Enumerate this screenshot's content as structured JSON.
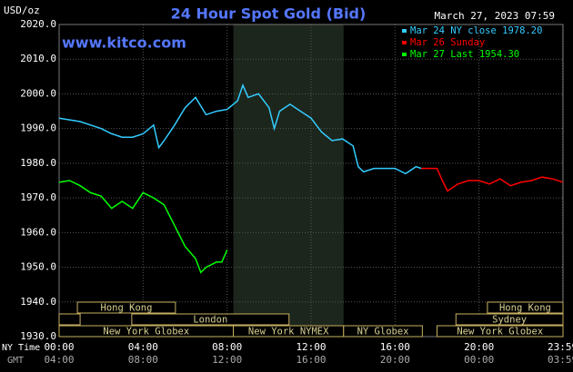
{
  "chart_data": {
    "type": "line",
    "title": "24 Hour Spot Gold (Bid)",
    "unit_label": "USD/oz",
    "date_label": "March 27, 2023 07:59",
    "watermark": "www.kitco.com",
    "x_row_label": "NY Time",
    "x_row2_label": "GMT",
    "xlim": [
      0,
      24
    ],
    "ylim": [
      1930,
      2020
    ],
    "yticks": [
      {
        "value": 1930,
        "label": "1930.0"
      },
      {
        "value": 1940,
        "label": "1940.0"
      },
      {
        "value": 1950,
        "label": "1950.0"
      },
      {
        "value": 1960,
        "label": "1960.0"
      },
      {
        "value": 1970,
        "label": "1970.0"
      },
      {
        "value": 1980,
        "label": "1980.0"
      },
      {
        "value": 1990,
        "label": "1990.0"
      },
      {
        "value": 2000,
        "label": "2000.0"
      },
      {
        "value": 2010,
        "label": "2010.0"
      },
      {
        "value": 2020,
        "label": "2020.0"
      }
    ],
    "xticks": [
      {
        "value": 0,
        "label": "00:00"
      },
      {
        "value": 4,
        "label": "04:00"
      },
      {
        "value": 8,
        "label": "08:00"
      },
      {
        "value": 12,
        "label": "12:00"
      },
      {
        "value": 16,
        "label": "16:00"
      },
      {
        "value": 20,
        "label": "20:00"
      },
      {
        "value": 23.98,
        "label": "23:59"
      }
    ],
    "xticks_gmt": [
      "04:00",
      "08:00",
      "12:00",
      "16:00",
      "20:00",
      "00:00",
      "03:59"
    ],
    "grid": true,
    "highlight": [
      8.3,
      13.55
    ],
    "sessions": [
      {
        "label": "Hong Kong",
        "row": 0,
        "start": 0.87,
        "end": 5.54
      },
      {
        "label": "Hong Kong",
        "row": 0,
        "start": 20.4,
        "end": 24
      },
      {
        "label": null,
        "row": 1,
        "start": 0,
        "end": 1
      },
      {
        "label": "London",
        "row": 1,
        "start": 3.46,
        "end": 10.95
      },
      {
        "label": "Sydney",
        "row": 1,
        "start": 18.9,
        "end": 24
      },
      {
        "label": "New York Globex",
        "row": 2,
        "start": 0,
        "end": 8.3
      },
      {
        "label": "New York NYMEX",
        "row": 2,
        "start": 8.3,
        "end": 13.55
      },
      {
        "label": "NY Globex",
        "row": 2,
        "start": 13.55,
        "end": 17.3
      },
      {
        "label": "New York Globex",
        "row": 2,
        "start": 18,
        "end": 24
      }
    ],
    "series": [
      {
        "name": "Mar 24 NY close 1978.20",
        "color": "#33ccff",
        "x": [
          0,
          0.5,
          1,
          1.5,
          2,
          2.5,
          3,
          3.5,
          4,
          4.5,
          4.75,
          5,
          5.5,
          6,
          6.5,
          7,
          7.5,
          8,
          8.5,
          8.75,
          9,
          9.5,
          10,
          10.25,
          10.5,
          11,
          11.5,
          12,
          12.5,
          13,
          13.5,
          14,
          14.25,
          14.5,
          15,
          15.5,
          16,
          16.5,
          17,
          17.25
        ],
        "values": [
          1993,
          1992.5,
          1992,
          1991,
          1990,
          1988.5,
          1987.5,
          1987.5,
          1988.5,
          1991,
          1984.5,
          1986.5,
          1991,
          1996,
          1999,
          1994,
          1995,
          1995.5,
          1998,
          2002.5,
          1999,
          2000,
          1996,
          1990,
          1995,
          1997,
          1995,
          1993,
          1989,
          1986.5,
          1987,
          1985,
          1979,
          1977.5,
          1978.5,
          1978.5,
          1978.5,
          1977,
          1979,
          1978.5
        ]
      },
      {
        "name": "Mar 26 Sunday",
        "color": "#ff0000",
        "x": [
          17.25,
          18,
          18.25,
          18.5,
          19,
          19.5,
          20,
          20.5,
          21,
          21.5,
          22,
          22.5,
          23,
          23.5,
          24
        ],
        "values": [
          1978.5,
          1978.5,
          1975,
          1972,
          1974,
          1975,
          1975,
          1974,
          1975.5,
          1973.5,
          1974.5,
          1975,
          1976,
          1975.5,
          1974.5
        ]
      },
      {
        "name": "Mar 27 Last 1954.30",
        "color": "#00ff00",
        "x": [
          0,
          0.5,
          1,
          1.5,
          2,
          2.5,
          3,
          3.5,
          4,
          4.5,
          5,
          5.5,
          6,
          6.5,
          6.75,
          7,
          7.5,
          7.75,
          8
        ],
        "values": [
          1974.5,
          1975,
          1973.5,
          1971.5,
          1970.5,
          1967,
          1969,
          1967,
          1971.5,
          1970,
          1968,
          1962,
          1956,
          1952.5,
          1948.5,
          1950,
          1951.5,
          1951.5,
          1955
        ]
      }
    ]
  }
}
